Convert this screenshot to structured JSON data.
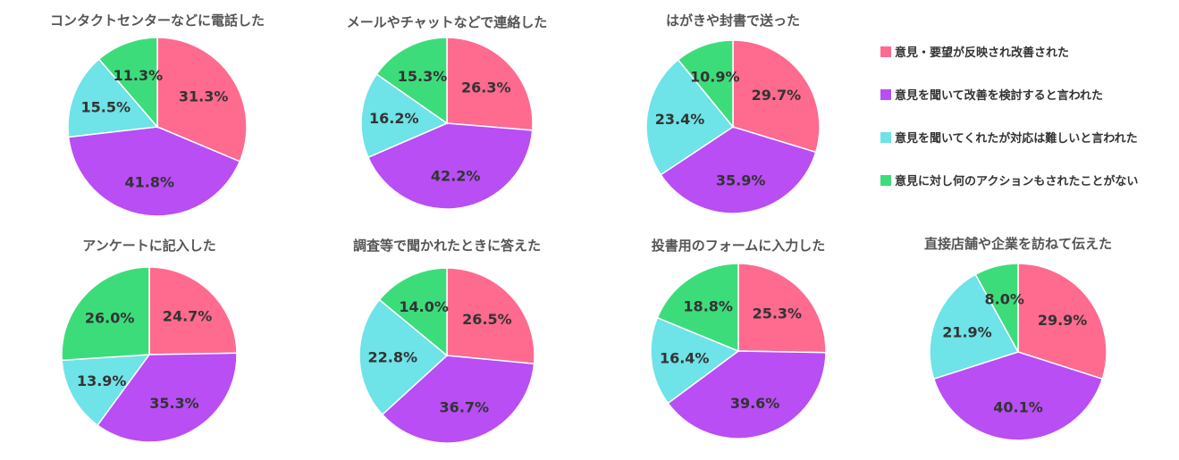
{
  "colors": {
    "pink": "#ff6a8f",
    "purple": "#b84ef3",
    "cyan": "#6ee3e8",
    "green": "#3ddc7b",
    "title_text": "#555555",
    "label_text": "#333333"
  },
  "chart_data": [
    {
      "type": "pie",
      "title": "コンタクトセンターなどに電話した",
      "values": [
        31.3,
        41.8,
        15.5,
        11.3
      ],
      "labels": [
        "31.3%",
        "41.8%",
        "15.5%",
        "11.3%"
      ]
    },
    {
      "type": "pie",
      "title": "メールやチャットなどで連絡した",
      "values": [
        26.3,
        42.2,
        16.2,
        15.3
      ],
      "labels": [
        "26.3%",
        "42.2%",
        "16.2%",
        "15.3%"
      ]
    },
    {
      "type": "pie",
      "title": "はがきや封書で送った",
      "values": [
        29.7,
        35.9,
        23.4,
        10.9
      ],
      "labels": [
        "29.7%",
        "35.9%",
        "23.4%",
        "10.9%"
      ]
    },
    {
      "type": "pie",
      "title": "アンケートに記入した",
      "values": [
        24.7,
        35.3,
        13.9,
        26.0
      ],
      "labels": [
        "24.7%",
        "35.3%",
        "13.9%",
        "26.0%"
      ]
    },
    {
      "type": "pie",
      "title": "調査等で聞かれたときに答えた",
      "values": [
        26.5,
        36.7,
        22.8,
        14.0
      ],
      "labels": [
        "26.5%",
        "36.7%",
        "22.8%",
        "14.0%"
      ]
    },
    {
      "type": "pie",
      "title": "投書用のフォームに入力した",
      "values": [
        25.3,
        39.6,
        16.4,
        18.8
      ],
      "labels": [
        "25.3%",
        "39.6%",
        "16.4%",
        "18.8%"
      ]
    },
    {
      "type": "pie",
      "title": "直接店舗や企業を訪ねて伝えた",
      "values": [
        29.9,
        40.1,
        21.9,
        8.0
      ],
      "labels": [
        "29.9%",
        "40.1%",
        "21.9%",
        "8.0%"
      ]
    }
  ],
  "legend": {
    "placement": "right",
    "items": [
      {
        "label": "意見・要望が反映され改善された",
        "color": "#ff6a8f"
      },
      {
        "label": "意見を聞いて改善を検討すると言われた",
        "color": "#b84ef3"
      },
      {
        "label": "意見を聞いてくれたが対応は難しいと言われた",
        "color": "#6ee3e8"
      },
      {
        "label": "意見に対し何のアクションもされたことがない",
        "color": "#3ddc7b"
      }
    ]
  }
}
